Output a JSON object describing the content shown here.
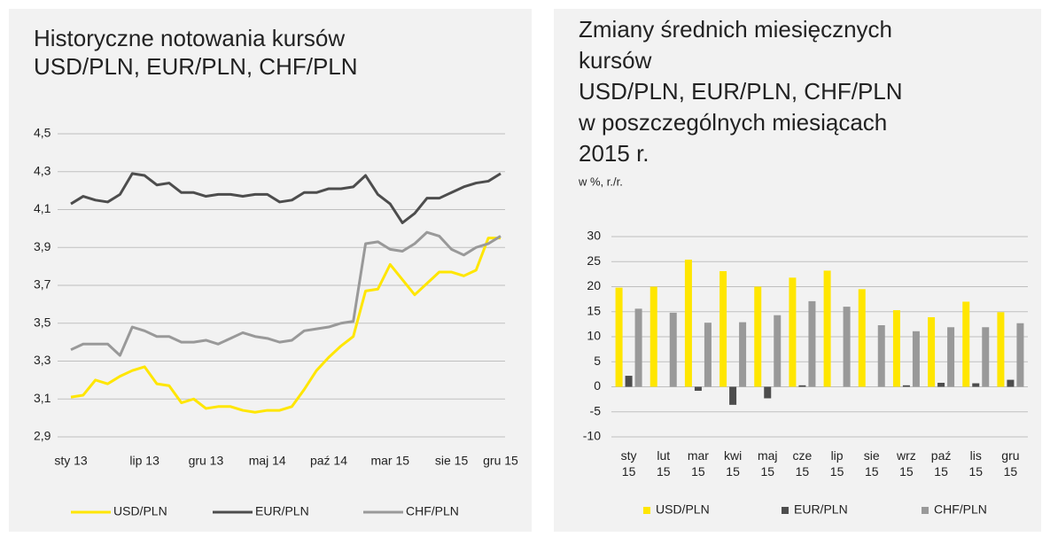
{
  "chart_data": [
    {
      "type": "line",
      "title": [
        "Historyczne notowania kursów",
        "USD/PLN, EUR/PLN, CHF/PLN"
      ],
      "categories": [
        "sty 13",
        null,
        null,
        null,
        null,
        null,
        "lip 13",
        null,
        null,
        null,
        null,
        "gru 13",
        null,
        null,
        null,
        null,
        "maj 14",
        null,
        null,
        null,
        null,
        "paź 14",
        null,
        null,
        null,
        null,
        "mar 15",
        null,
        null,
        null,
        null,
        "sie 15",
        null,
        null,
        null,
        "gru 15"
      ],
      "series": [
        {
          "name": "USD/PLN",
          "color": "#ffe600",
          "values": [
            3.11,
            3.12,
            3.2,
            3.18,
            3.22,
            3.25,
            3.27,
            3.18,
            3.17,
            3.08,
            3.1,
            3.05,
            3.06,
            3.06,
            3.04,
            3.03,
            3.04,
            3.04,
            3.06,
            3.15,
            3.25,
            3.32,
            3.38,
            3.43,
            3.67,
            3.68,
            3.81,
            3.73,
            3.65,
            3.71,
            3.77,
            3.77,
            3.75,
            3.78,
            3.95,
            3.95
          ]
        },
        {
          "name": "EUR/PLN",
          "color": "#4d4d4d",
          "values": [
            4.13,
            4.17,
            4.15,
            4.14,
            4.18,
            4.29,
            4.28,
            4.23,
            4.24,
            4.19,
            4.19,
            4.17,
            4.18,
            4.18,
            4.17,
            4.18,
            4.18,
            4.14,
            4.15,
            4.19,
            4.19,
            4.21,
            4.21,
            4.22,
            4.28,
            4.18,
            4.13,
            4.03,
            4.08,
            4.16,
            4.16,
            4.19,
            4.22,
            4.24,
            4.25,
            4.29
          ]
        },
        {
          "name": "CHF/PLN",
          "color": "#999999",
          "values": [
            3.36,
            3.39,
            3.39,
            3.39,
            3.33,
            3.48,
            3.46,
            3.43,
            3.43,
            3.4,
            3.4,
            3.41,
            3.39,
            3.42,
            3.45,
            3.43,
            3.42,
            3.4,
            3.41,
            3.46,
            3.47,
            3.48,
            3.5,
            3.51,
            3.92,
            3.93,
            3.89,
            3.88,
            3.92,
            3.98,
            3.96,
            3.89,
            3.86,
            3.9,
            3.92,
            3.96
          ]
        }
      ],
      "ylim": [
        2.9,
        4.5
      ],
      "yticks": [
        {
          "value": 2.9,
          "label": "2,9"
        },
        {
          "value": 3.1,
          "label": "3,1"
        },
        {
          "value": 3.3,
          "label": "3,3"
        },
        {
          "value": 3.5,
          "label": "3,5"
        },
        {
          "value": 3.7,
          "label": "3,7"
        },
        {
          "value": 3.9,
          "label": "3,9"
        },
        {
          "value": 4.1,
          "label": "4,1"
        },
        {
          "value": 4.3,
          "label": "4,3"
        },
        {
          "value": 4.5,
          "label": "4,5"
        }
      ],
      "grid": true,
      "legend": "bottom"
    },
    {
      "type": "bar",
      "title": [
        "Zmiany średnich miesięcznych",
        "kursów",
        "USD/PLN, EUR/PLN, CHF/PLN",
        "w poszczególnych miesiącach",
        "2015 r."
      ],
      "subtitle": "w %, r./r.",
      "categories": [
        "sty 15",
        "lut 15",
        "mar 15",
        "kwi 15",
        "maj 15",
        "cze 15",
        "lip 15",
        "sie 15",
        "wrz 15",
        "paź 15",
        "lis 15",
        "gru 15"
      ],
      "series": [
        {
          "name": "USD/PLN",
          "color": "#ffe600",
          "values": [
            19.8,
            20.0,
            25.4,
            23.1,
            20.0,
            21.8,
            23.2,
            19.5,
            15.3,
            13.9,
            17.0,
            14.9
          ]
        },
        {
          "name": "EUR/PLN",
          "color": "#4d4d4d",
          "values": [
            2.2,
            0,
            -0.8,
            -3.6,
            -2.3,
            0.3,
            0,
            0,
            0.3,
            0.8,
            0.7,
            1.4
          ]
        },
        {
          "name": "CHF/PLN",
          "color": "#999999",
          "values": [
            15.6,
            14.8,
            12.8,
            12.9,
            14.3,
            17.1,
            16.0,
            12.3,
            11.1,
            11.9,
            11.9,
            12.7
          ]
        }
      ],
      "ylim": [
        -10,
        30
      ],
      "yticks": [
        -10,
        -5,
        0,
        5,
        10,
        15,
        20,
        25,
        30
      ],
      "grid": true,
      "legend": "bottom"
    }
  ]
}
